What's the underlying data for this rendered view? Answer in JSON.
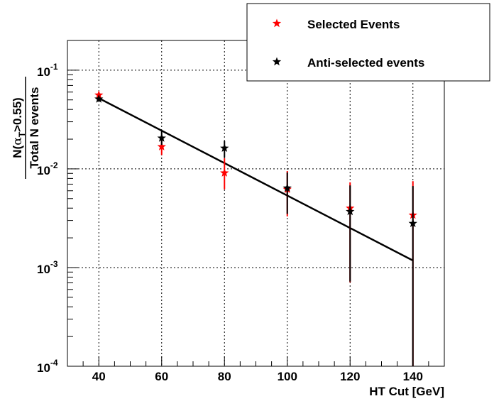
{
  "chart_data": {
    "type": "scatter",
    "title": "",
    "xlabel": "HT Cut [GeV]",
    "ylabel": {
      "numerator_prefix": "N(",
      "alpha": "α",
      "subscript": "T",
      "numerator_suffix": ">0.55)",
      "denominator": "Total N events"
    },
    "xlim": [
      30,
      150
    ],
    "ylim": [
      0.0001,
      0.2
    ],
    "yscale": "log",
    "grid": true,
    "legend_position": "top-right",
    "x_ticks": [
      "40",
      "60",
      "80",
      "100",
      "120",
      "140"
    ],
    "y_ticks": [
      {
        "base": "10",
        "exp": "-1"
      },
      {
        "base": "10",
        "exp": "-2"
      },
      {
        "base": "10",
        "exp": "-3"
      },
      {
        "base": "10",
        "exp": "-4"
      }
    ],
    "series": [
      {
        "name": "Selected Events",
        "color": "#ff0000",
        "points": [
          {
            "x": 40,
            "y": 0.056,
            "yerr_low": 0.053,
            "yerr_high": 0.059
          },
          {
            "x": 60,
            "y": 0.0168,
            "yerr_low": 0.0138,
            "yerr_high": 0.0205
          },
          {
            "x": 80,
            "y": 0.0091,
            "yerr_low": 0.0062,
            "yerr_high": 0.0128
          },
          {
            "x": 100,
            "y": 0.0062,
            "yerr_low": 0.0033,
            "yerr_high": 0.0095
          },
          {
            "x": 120,
            "y": 0.004,
            "yerr_low": 0.00071,
            "yerr_high": 0.0073
          },
          {
            "x": 140,
            "y": 0.0034,
            "yerr_low": 0.0001,
            "yerr_high": 0.0075
          }
        ]
      },
      {
        "name": "Anti-selected events",
        "color": "#000000",
        "points": [
          {
            "x": 40,
            "y": 0.051,
            "yerr_low": 0.0495,
            "yerr_high": 0.0525
          },
          {
            "x": 60,
            "y": 0.0205,
            "yerr_low": 0.0175,
            "yerr_high": 0.0245
          },
          {
            "x": 80,
            "y": 0.0162,
            "yerr_low": 0.013,
            "yerr_high": 0.0192
          },
          {
            "x": 100,
            "y": 0.0064,
            "yerr_low": 0.0035,
            "yerr_high": 0.0092
          },
          {
            "x": 120,
            "y": 0.0037,
            "yerr_low": 0.00072,
            "yerr_high": 0.0068
          },
          {
            "x": 140,
            "y": 0.0028,
            "yerr_low": 0.0001,
            "yerr_high": 0.0067
          }
        ]
      }
    ],
    "fit_line": {
      "x": [
        40,
        140
      ],
      "y": [
        0.052,
        0.00118
      ],
      "color": "#000000"
    }
  }
}
